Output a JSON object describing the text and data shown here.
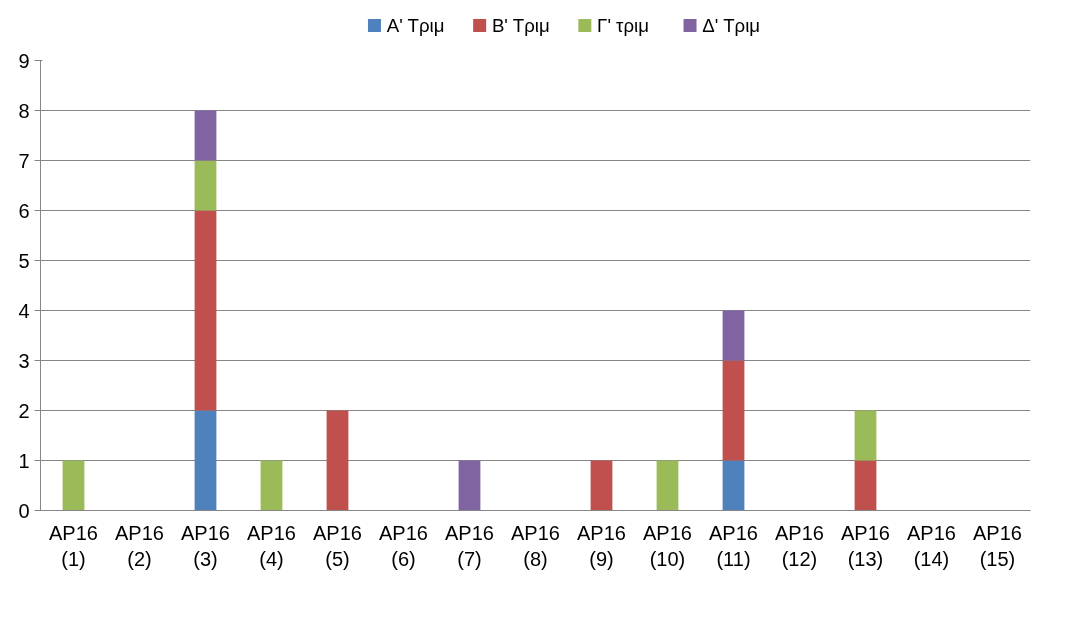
{
  "chart_data": {
    "type": "bar",
    "stacked": true,
    "categories": [
      "AP16\n(1)",
      "AP16\n(2)",
      "AP16\n(3)",
      "AP16\n(4)",
      "AP16\n(5)",
      "AP16\n(6)",
      "AP16\n(7)",
      "AP16\n(8)",
      "AP16\n(9)",
      "AP16\n(10)",
      "AP16\n(11)",
      "AP16\n(12)",
      "AP16\n(13)",
      "AP16\n(14)",
      "AP16\n(15)"
    ],
    "series": [
      {
        "name": "Α' Τριμ",
        "color": "#4f81bd",
        "values": [
          0,
          0,
          2,
          0,
          0,
          0,
          0,
          0,
          0,
          0,
          1,
          0,
          0,
          0,
          0
        ]
      },
      {
        "name": "Β' Τριμ",
        "color": "#c0504d",
        "values": [
          0,
          0,
          4,
          0,
          2,
          0,
          0,
          0,
          1,
          0,
          2,
          0,
          1,
          0,
          0
        ]
      },
      {
        "name": "Γ' τριμ",
        "color": "#9bbb59",
        "values": [
          1,
          0,
          1,
          1,
          0,
          0,
          0,
          0,
          0,
          1,
          0,
          0,
          1,
          0,
          0
        ]
      },
      {
        "name": "Δ' Τριμ",
        "color": "#8064a2",
        "values": [
          0,
          0,
          1,
          0,
          0,
          0,
          1,
          0,
          0,
          0,
          1,
          0,
          0,
          0,
          0
        ]
      }
    ],
    "ylim": [
      0,
      9
    ],
    "yticks": [
      0,
      1,
      2,
      3,
      4,
      5,
      6,
      7,
      8,
      9
    ],
    "grid": "y",
    "legend": "top"
  }
}
